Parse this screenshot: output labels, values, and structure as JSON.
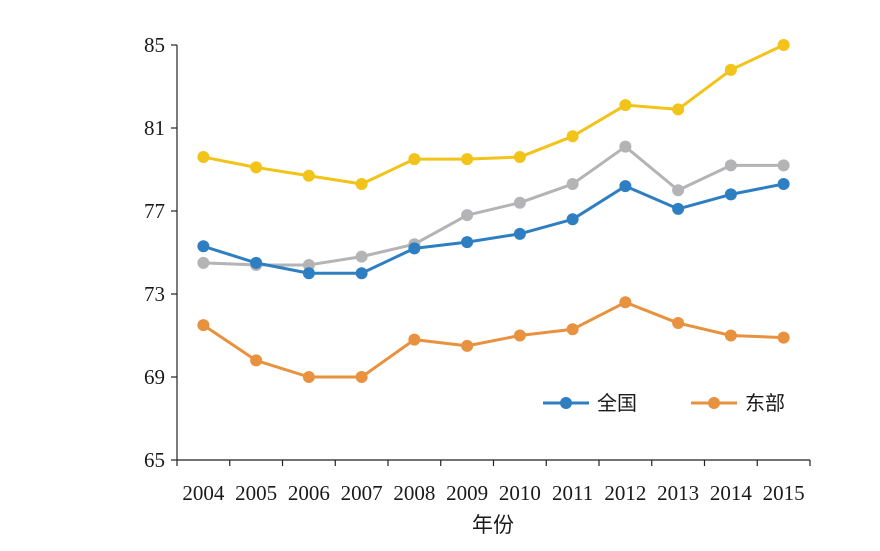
{
  "chart_data": {
    "type": "line",
    "categories": [
      "2004",
      "2005",
      "2006",
      "2007",
      "2008",
      "2009",
      "2010",
      "2011",
      "2012",
      "2013",
      "2014",
      "2015"
    ],
    "xlabel": "年份",
    "ylabel": "",
    "ylim": [
      65,
      85
    ],
    "yticks": [
      65,
      69,
      73,
      77,
      81,
      85
    ],
    "grid": false,
    "legend_position": "bottom-right",
    "series": [
      {
        "name": "",
        "color": "#F2C318",
        "values": [
          79.6,
          79.1,
          78.7,
          78.3,
          79.5,
          79.5,
          79.6,
          80.6,
          82.1,
          81.9,
          83.8,
          85.0
        ]
      },
      {
        "name": "",
        "color": "#B4B4B6",
        "values": [
          74.5,
          74.4,
          74.4,
          74.8,
          75.4,
          76.8,
          77.4,
          78.3,
          80.1,
          78.0,
          79.2,
          79.2
        ]
      },
      {
        "name": "全国",
        "color": "#2E7FC1",
        "values": [
          75.3,
          74.5,
          74.0,
          74.0,
          75.2,
          75.5,
          75.9,
          76.6,
          78.2,
          77.1,
          77.8,
          78.3
        ]
      },
      {
        "name": "东部",
        "color": "#E8913E",
        "values": [
          71.5,
          69.8,
          69.0,
          69.0,
          70.8,
          70.5,
          71.0,
          71.3,
          72.6,
          71.6,
          71.0,
          70.9
        ]
      }
    ]
  }
}
